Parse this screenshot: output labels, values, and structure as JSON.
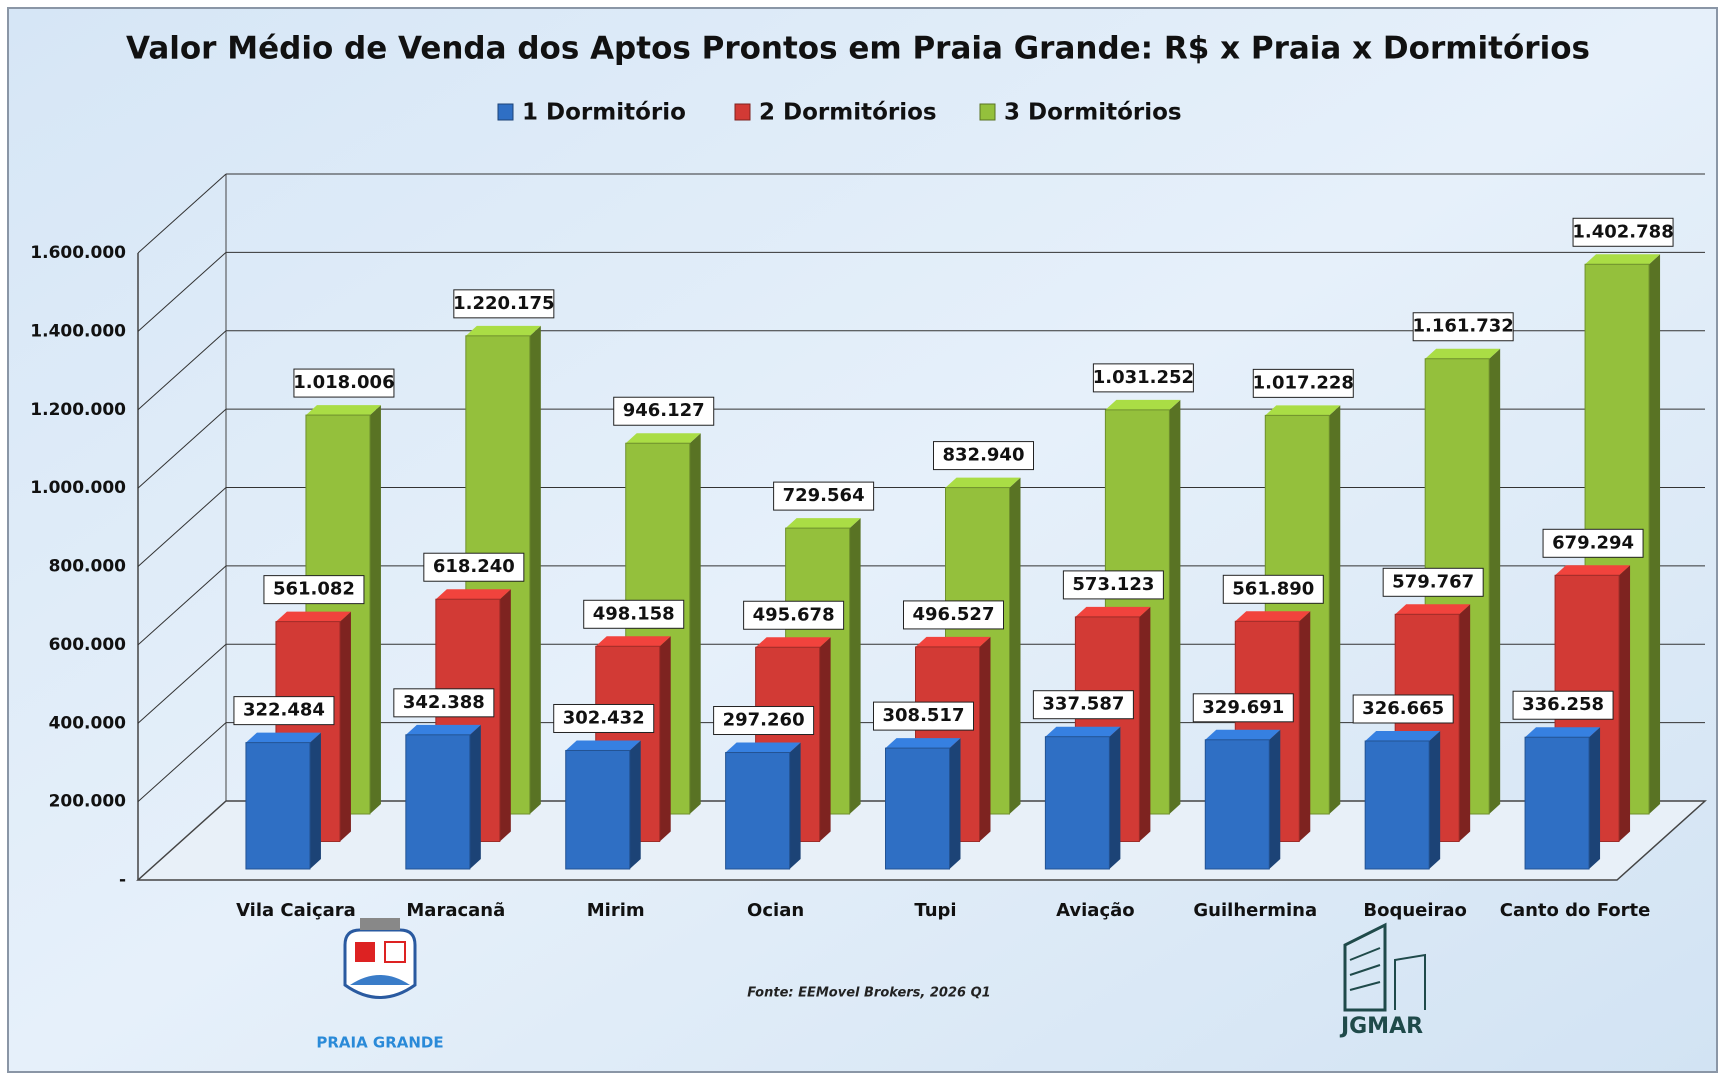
{
  "chart_data": {
    "type": "bar3d",
    "title": "Valor Médio de Venda dos Aptos Prontos em Praia Grande: R$ x Praia x Dormitórios",
    "categories": [
      "Vila Caiçara",
      "Maracanã",
      "Mirim",
      "Ocian",
      "Tupi",
      "Aviação",
      "Guilhermina",
      "Boqueirao",
      "Canto do  Forte"
    ],
    "series": [
      {
        "name": "1 Dormitório",
        "color": "#2f6fc4",
        "values": [
          322484,
          342388,
          302432,
          297260,
          308517,
          337587,
          329691,
          326665,
          336258
        ],
        "value_labels": [
          "322.484",
          "342.388",
          "302.432",
          "297.260",
          "308.517",
          "337.587",
          "329.691",
          "326.665",
          "336.258"
        ]
      },
      {
        "name": "2 Dormitórios",
        "color": "#d23a35",
        "values": [
          561082,
          618240,
          498158,
          495678,
          496527,
          573123,
          561890,
          579767,
          679294
        ],
        "value_labels": [
          "561.082",
          "618.240",
          "498.158",
          "495.678",
          "496.527",
          "573.123",
          "561.890",
          "579.767",
          "679.294"
        ]
      },
      {
        "name": "3 Dormitórios",
        "color": "#94c03c",
        "values": [
          1018006,
          1220175,
          946127,
          729564,
          832940,
          1031252,
          1017228,
          1161732,
          1402788
        ],
        "value_labels": [
          "1.018.006",
          "1.220.175",
          "946.127",
          "729.564",
          "832.940",
          "1.031.252",
          "1.017.228",
          "1.161.732",
          "1.402.788"
        ]
      }
    ],
    "ylim": [
      0,
      1600000
    ],
    "yticks": [
      {
        "value": 0,
        "label": "-"
      },
      {
        "value": 200000,
        "label": "200.000"
      },
      {
        "value": 400000,
        "label": "400.000"
      },
      {
        "value": 600000,
        "label": "600.000"
      },
      {
        "value": 800000,
        "label": "800.000"
      },
      {
        "value": 1000000,
        "label": "1.000.000"
      },
      {
        "value": 1200000,
        "label": "1.200.000"
      },
      {
        "value": 1400000,
        "label": "1.400.000"
      },
      {
        "value": 1600000,
        "label": "1.600.000"
      }
    ],
    "grid": true,
    "legend": "top",
    "source": "Fonte: EEMovel Brokers, 2026 Q1",
    "logos": [
      "PRAIA GRANDE",
      "JGMAR"
    ]
  }
}
